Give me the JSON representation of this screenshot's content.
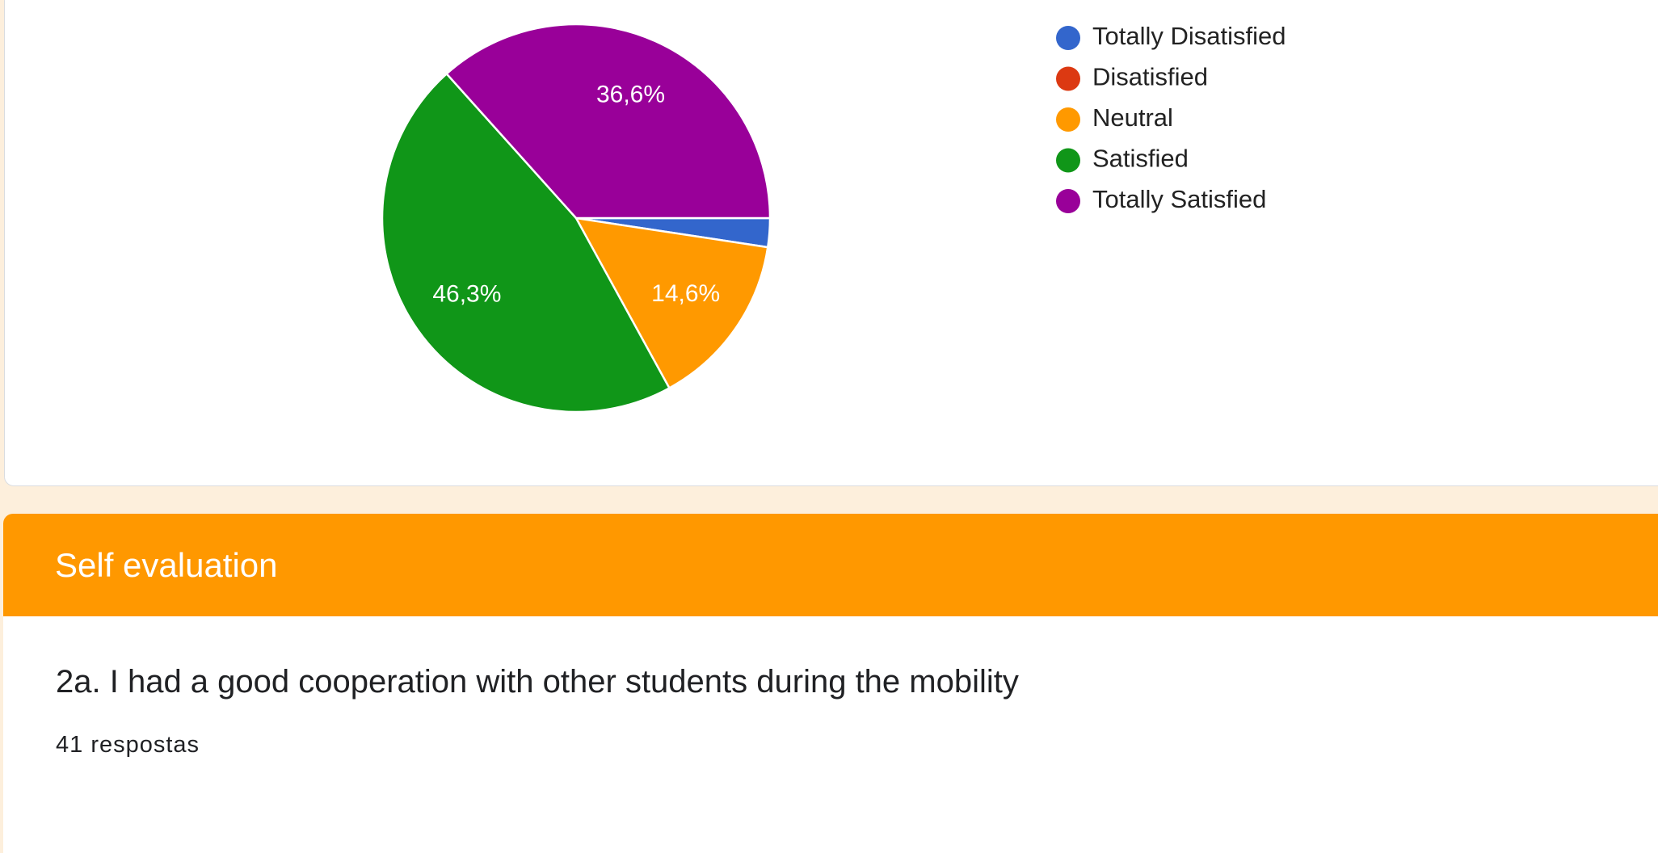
{
  "chart_data": {
    "type": "pie",
    "categories": [
      "Totally Disatisfied",
      "Disatisfied",
      "Neutral",
      "Satisfied",
      "Totally Satisfied"
    ],
    "values": [
      2.4,
      0,
      14.6,
      46.3,
      36.6
    ],
    "value_labels": [
      null,
      null,
      "14,6%",
      "46,3%",
      "36,6%"
    ],
    "colors": [
      "#3366cc",
      "#dc3912",
      "#ff9900",
      "#109618",
      "#990099"
    ],
    "legend": "right"
  },
  "section": {
    "title": "Self evaluation"
  },
  "question": {
    "title": "2a. I had a good cooperation with other students during the mobility",
    "responses": "41 respostas"
  }
}
